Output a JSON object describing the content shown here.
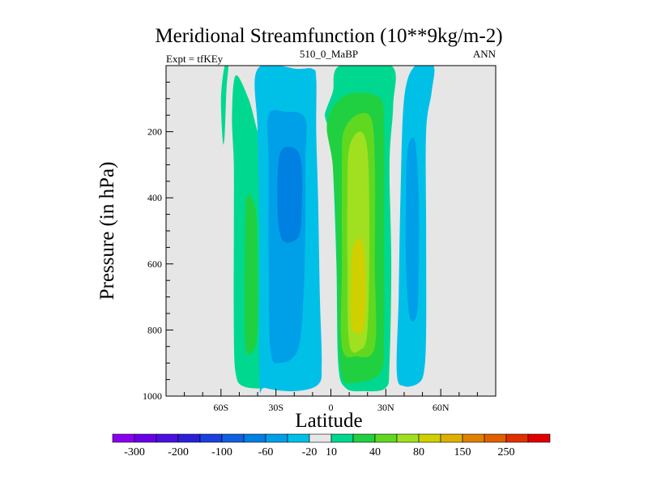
{
  "chart_data": {
    "type": "contour",
    "title": "Meridional Streamfunction (10**9kg/m-2)",
    "subtitle_left": "Expt = tfKEy",
    "subtitle_center": "510_0_MaBP",
    "subtitle_right": "ANN",
    "xlabel": "Latitude",
    "ylabel": "Pressure (in hPa)",
    "xlim": [
      -90,
      90
    ],
    "ylim": [
      1000,
      0
    ],
    "x_ticks": [
      {
        "value": -60,
        "label": "60S"
      },
      {
        "value": -30,
        "label": "30S"
      },
      {
        "value": 0,
        "label": "0"
      },
      {
        "value": 30,
        "label": "30N"
      },
      {
        "value": 60,
        "label": "60N"
      }
    ],
    "y_ticks": [
      {
        "value": 200,
        "label": "200"
      },
      {
        "value": 400,
        "label": "400"
      },
      {
        "value": 600,
        "label": "600"
      },
      {
        "value": 800,
        "label": "800"
      },
      {
        "value": 1000,
        "label": "1000"
      }
    ],
    "background_color": "#e6e6e6",
    "colorbar": {
      "colors": [
        "#8a00f0",
        "#6a00e8",
        "#4a10e0",
        "#2a20d8",
        "#1a40e0",
        "#1060e0",
        "#0080e0",
        "#00a0e8",
        "#00c0e8",
        "#e6e6e6",
        "#00d890",
        "#20d040",
        "#60d820",
        "#a0e020",
        "#d0d000",
        "#e0b000",
        "#e08000",
        "#e06000",
        "#e03000",
        "#e00000"
      ],
      "labels": [
        {
          "index": 1,
          "label": "-300"
        },
        {
          "index": 3,
          "label": "-200"
        },
        {
          "index": 5,
          "label": "-100"
        },
        {
          "index": 7,
          "label": "-60"
        },
        {
          "index": 9,
          "label": "-20"
        },
        {
          "index": 10,
          "label": "10"
        },
        {
          "index": 12,
          "label": "40"
        },
        {
          "index": 14,
          "label": "80"
        },
        {
          "index": 16,
          "label": "150"
        },
        {
          "index": 18,
          "label": "250"
        }
      ]
    },
    "regions": [
      {
        "name": "cell-north-polar",
        "level": "10 to 40",
        "color": "#00d890",
        "outline": [
          [
            -58,
            0
          ],
          [
            -56,
            0
          ],
          [
            -57,
            70
          ],
          [
            -58,
            210
          ],
          [
            -59,
            230
          ],
          [
            -60,
            100
          ]
        ]
      },
      {
        "name": "cell-south-ferrel-outer",
        "level": "10 to 40",
        "color": "#00d890",
        "outline": [
          [
            -52,
            30
          ],
          [
            -45,
            100
          ],
          [
            -40,
            200
          ],
          [
            -34,
            300
          ],
          [
            -32,
            500
          ],
          [
            -31,
            800
          ],
          [
            -32,
            950
          ],
          [
            -36,
            975
          ],
          [
            -48,
            970
          ],
          [
            -52,
            930
          ],
          [
            -53,
            800
          ],
          [
            -53,
            500
          ],
          [
            -53,
            300
          ],
          [
            -54,
            150
          ]
        ]
      },
      {
        "name": "cell-south-ferrel-inner",
        "level": "40 to 60",
        "color": "#20d040",
        "outline": [
          [
            -46,
            400
          ],
          [
            -41,
            440
          ],
          [
            -40,
            600
          ],
          [
            -40,
            800
          ],
          [
            -42,
            860
          ],
          [
            -46,
            870
          ],
          [
            -47,
            800
          ],
          [
            -47,
            600
          ]
        ]
      },
      {
        "name": "cell-south-hadley-outer",
        "level": "-20 to -10",
        "color": "#00c0e8",
        "outline": [
          [
            -40,
            10
          ],
          [
            -18,
            10
          ],
          [
            -10,
            10
          ],
          [
            -8,
            40
          ],
          [
            -8,
            200
          ],
          [
            -7,
            400
          ],
          [
            -6,
            700
          ],
          [
            -5,
            900
          ],
          [
            -7,
            965
          ],
          [
            -20,
            985
          ],
          [
            -36,
            975
          ],
          [
            -39,
            950
          ],
          [
            -39,
            500
          ],
          [
            -40,
            200
          ]
        ]
      },
      {
        "name": "cell-south-hadley-inner",
        "level": "-40 to -20",
        "color": "#00a0e8",
        "outline": [
          [
            -34,
            150
          ],
          [
            -25,
            140
          ],
          [
            -14,
            160
          ],
          [
            -14,
            300
          ],
          [
            -14,
            500
          ],
          [
            -15,
            700
          ],
          [
            -18,
            860
          ],
          [
            -28,
            900
          ],
          [
            -33,
            860
          ],
          [
            -34,
            600
          ],
          [
            -34,
            300
          ]
        ]
      },
      {
        "name": "cell-south-hadley-core",
        "level": "-60 to -40",
        "color": "#0080e0",
        "outline": [
          [
            -28,
            270
          ],
          [
            -20,
            250
          ],
          [
            -16,
            300
          ],
          [
            -16,
            450
          ],
          [
            -18,
            520
          ],
          [
            -26,
            530
          ],
          [
            -29,
            450
          ]
        ]
      },
      {
        "name": "cell-equator-positive-outer",
        "level": "10 to 40",
        "color": "#00d890",
        "outline": [
          [
            -3,
            140
          ],
          [
            1,
            80
          ],
          [
            5,
            0
          ],
          [
            33,
            0
          ],
          [
            34,
            120
          ],
          [
            32,
            300
          ],
          [
            33,
            600
          ],
          [
            32,
            900
          ],
          [
            30,
            975
          ],
          [
            18,
            985
          ],
          [
            8,
            975
          ],
          [
            4,
            900
          ],
          [
            3,
            600
          ],
          [
            1,
            300
          ],
          [
            -1,
            200
          ],
          [
            -3,
            160
          ]
        ]
      },
      {
        "name": "cell-equator-positive-mid",
        "level": "40 to 60",
        "color": "#20d040",
        "outline": [
          [
            -2,
            170
          ],
          [
            8,
            90
          ],
          [
            26,
            95
          ],
          [
            29,
            180
          ],
          [
            29,
            500
          ],
          [
            29,
            800
          ],
          [
            27,
            930
          ],
          [
            12,
            960
          ],
          [
            6,
            940
          ],
          [
            4,
            800
          ],
          [
            3,
            500
          ],
          [
            1,
            300
          ]
        ]
      },
      {
        "name": "cell-equator-positive-inner",
        "level": "60 to 80",
        "color": "#60d820",
        "outline": [
          [
            7,
            200
          ],
          [
            14,
            150
          ],
          [
            22,
            160
          ],
          [
            24,
            300
          ],
          [
            24,
            600
          ],
          [
            24,
            850
          ],
          [
            14,
            880
          ],
          [
            6,
            850
          ],
          [
            6,
            600
          ],
          [
            6,
            300
          ]
        ]
      },
      {
        "name": "cell-equator-positive-core",
        "level": "80 to 100",
        "color": "#a0e020",
        "outline": [
          [
            10,
            250
          ],
          [
            16,
            200
          ],
          [
            20,
            260
          ],
          [
            21,
            500
          ],
          [
            20,
            800
          ],
          [
            16,
            860
          ],
          [
            10,
            840
          ],
          [
            9,
            600
          ],
          [
            9,
            400
          ]
        ]
      },
      {
        "name": "cell-equator-positive-peak",
        "level": "100 to 150",
        "color": "#d0d000",
        "outline": [
          [
            12,
            550
          ],
          [
            17,
            530
          ],
          [
            19,
            650
          ],
          [
            18,
            790
          ],
          [
            14,
            810
          ],
          [
            11,
            780
          ],
          [
            11,
            650
          ]
        ]
      },
      {
        "name": "cell-north-negative-outer",
        "level": "-20 to -10",
        "color": "#00c0e8",
        "outline": [
          [
            46,
            0
          ],
          [
            56,
            0
          ],
          [
            55,
            80
          ],
          [
            52,
            200
          ],
          [
            52,
            500
          ],
          [
            52,
            800
          ],
          [
            51,
            920
          ],
          [
            48,
            960
          ],
          [
            40,
            970
          ],
          [
            36,
            930
          ],
          [
            37,
            700
          ],
          [
            38,
            400
          ],
          [
            40,
            100
          ]
        ]
      },
      {
        "name": "cell-north-negative-inner",
        "level": "-40 to -20",
        "color": "#00a0e8",
        "outline": [
          [
            42,
            250
          ],
          [
            46,
            230
          ],
          [
            48,
            400
          ],
          [
            48,
            600
          ],
          [
            47,
            750
          ],
          [
            43,
            760
          ],
          [
            41,
            600
          ],
          [
            41,
            400
          ]
        ]
      }
    ]
  }
}
